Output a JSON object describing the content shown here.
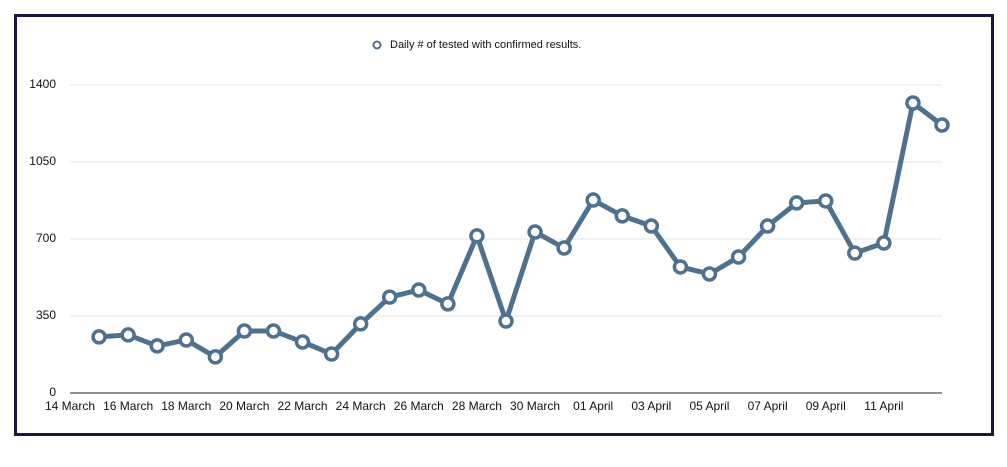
{
  "chart_data": {
    "type": "line",
    "categories": [
      "14 March",
      null,
      "16 March",
      null,
      "18 March",
      null,
      "20 March",
      null,
      "22 March",
      null,
      "24 March",
      null,
      "26 March",
      null,
      "28 March",
      null,
      "30 March",
      null,
      "01 April",
      null,
      "03 April",
      null,
      "05 April",
      null,
      "07 April",
      null,
      "09 April",
      null,
      "11 April",
      null,
      null
    ],
    "series": [
      {
        "name": "Daily # of tested with confirmed results.",
        "color": "#4f7190",
        "values": [
          null,
          255,
          264,
          214,
          241,
          164,
          282,
          282,
          232,
          177,
          314,
          436,
          468,
          405,
          714,
          327,
          732,
          659,
          877,
          805,
          759,
          573,
          541,
          618,
          759,
          864,
          873,
          636,
          682,
          1318,
          1218
        ]
      }
    ],
    "ylim": [
      0,
      1400
    ],
    "yticks": [
      0,
      350,
      700,
      1050,
      1400
    ],
    "grid": true,
    "legend": "top"
  }
}
